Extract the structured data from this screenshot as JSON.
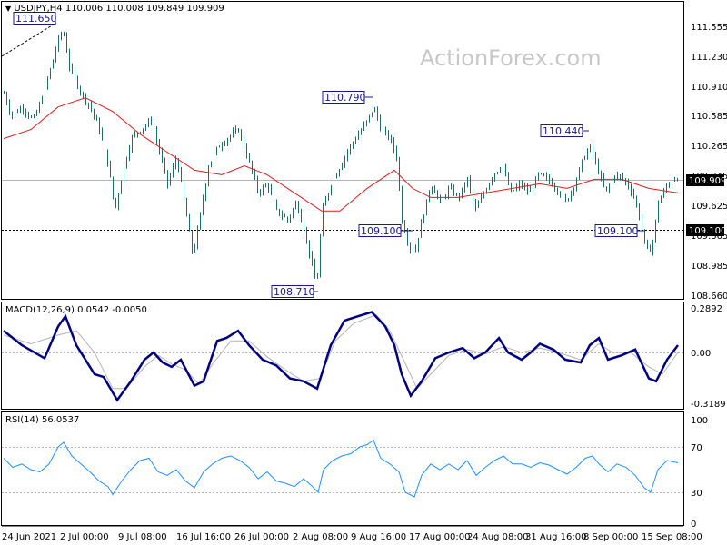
{
  "watermark": "ActionForex.com",
  "header": {
    "symbol": "USDJPY,H4",
    "ohlc": "110.006 110.008 109.849 109.909"
  },
  "price_panel": {
    "current_price": "109.909",
    "support_level": "109.100",
    "price_axis": [
      "111.555",
      "111.230",
      "110.910",
      "110.585",
      "110.265",
      "109.945",
      "109.625",
      "109.305",
      "108.985",
      "108.660"
    ],
    "annotations": [
      "111.650",
      "110.790",
      "110.440",
      "109.100",
      "109.100",
      "108.710"
    ]
  },
  "macd_panel": {
    "label": "MACD(12,26,9) 0.0542 -0.0050",
    "axis": [
      "0.2892",
      "0.00",
      "-0.3189"
    ]
  },
  "rsi_panel": {
    "label": "RSI(14) 56.0537",
    "axis": [
      "100",
      "70",
      "30",
      "0"
    ]
  },
  "time_axis": [
    "24 Jun 2021",
    "2 Jul 00:00",
    "9 Jul 08:00",
    "16 Jul 16:00",
    "26 Jul 00:00",
    "2 Aug 08:00",
    "9 Aug 16:00",
    "17 Aug 00:00",
    "24 Aug 08:00",
    "31 Aug 16:00",
    "8 Sep 00:00",
    "15 Sep 08:00"
  ],
  "colors": {
    "candle": "#1e6e6e",
    "ma": "#dc1e1e",
    "macd": "#000080",
    "signal": "#b4b4b4",
    "rsi": "#1e90ff",
    "label": "#1a1a8c"
  },
  "chart_data": {
    "type": "line",
    "price": {
      "ylim": [
        108.66,
        111.8
      ],
      "close_path": [
        [
          0,
          110.9
        ],
        [
          8,
          110.65
        ],
        [
          20,
          110.75
        ],
        [
          32,
          110.6
        ],
        [
          42,
          110.85
        ],
        [
          52,
          111.2
        ],
        [
          60,
          111.5
        ],
        [
          65,
          111.6
        ],
        [
          72,
          111.2
        ],
        [
          85,
          110.9
        ],
        [
          95,
          110.75
        ],
        [
          105,
          110.5
        ],
        [
          115,
          110.1
        ],
        [
          122,
          109.6
        ],
        [
          130,
          110.0
        ],
        [
          140,
          110.4
        ],
        [
          150,
          110.5
        ],
        [
          162,
          110.6
        ],
        [
          170,
          110.3
        ],
        [
          180,
          109.9
        ],
        [
          190,
          110.2
        ],
        [
          200,
          109.6
        ],
        [
          208,
          109.1
        ],
        [
          215,
          109.5
        ],
        [
          225,
          110.1
        ],
        [
          235,
          110.3
        ],
        [
          245,
          110.4
        ],
        [
          258,
          110.5
        ],
        [
          268,
          110.2
        ],
        [
          280,
          109.8
        ],
        [
          290,
          109.9
        ],
        [
          300,
          109.6
        ],
        [
          312,
          109.5
        ],
        [
          322,
          109.7
        ],
        [
          330,
          109.4
        ],
        [
          338,
          109.05
        ],
        [
          344,
          108.75
        ],
        [
          350,
          109.6
        ],
        [
          360,
          109.9
        ],
        [
          370,
          110.1
        ],
        [
          380,
          110.3
        ],
        [
          390,
          110.45
        ],
        [
          400,
          110.6
        ],
        [
          407,
          110.75
        ],
        [
          415,
          110.5
        ],
        [
          425,
          110.4
        ],
        [
          432,
          110.2
        ],
        [
          438,
          109.5
        ],
        [
          446,
          109.2
        ],
        [
          452,
          109.15
        ],
        [
          460,
          109.5
        ],
        [
          470,
          109.9
        ],
        [
          480,
          109.7
        ],
        [
          490,
          109.85
        ],
        [
          500,
          109.75
        ],
        [
          510,
          109.95
        ],
        [
          518,
          109.6
        ],
        [
          528,
          109.8
        ],
        [
          538,
          110.0
        ],
        [
          548,
          110.1
        ],
        [
          558,
          109.8
        ],
        [
          568,
          109.9
        ],
        [
          578,
          109.8
        ],
        [
          588,
          110.0
        ],
        [
          598,
          109.95
        ],
        [
          608,
          109.85
        ],
        [
          618,
          109.7
        ],
        [
          628,
          109.9
        ],
        [
          638,
          110.2
        ],
        [
          645,
          110.3
        ],
        [
          652,
          110.1
        ],
        [
          662,
          109.8
        ],
        [
          672,
          110.0
        ],
        [
          682,
          109.95
        ],
        [
          692,
          109.8
        ],
        [
          700,
          109.5
        ],
        [
          707,
          109.15
        ],
        [
          713,
          109.2
        ],
        [
          720,
          109.7
        ],
        [
          728,
          109.85
        ],
        [
          736,
          110.0
        ],
        [
          742,
          109.9
        ]
      ],
      "ma_path": [
        [
          0,
          110.4
        ],
        [
          30,
          110.5
        ],
        [
          60,
          110.75
        ],
        [
          90,
          110.85
        ],
        [
          120,
          110.7
        ],
        [
          150,
          110.45
        ],
        [
          180,
          110.25
        ],
        [
          210,
          110.05
        ],
        [
          240,
          110.0
        ],
        [
          265,
          110.1
        ],
        [
          290,
          110.0
        ],
        [
          320,
          109.8
        ],
        [
          350,
          109.6
        ],
        [
          370,
          109.6
        ],
        [
          400,
          109.85
        ],
        [
          430,
          110.05
        ],
        [
          450,
          109.85
        ],
        [
          470,
          109.75
        ],
        [
          500,
          109.75
        ],
        [
          530,
          109.8
        ],
        [
          560,
          109.85
        ],
        [
          590,
          109.9
        ],
        [
          620,
          109.85
        ],
        [
          650,
          109.95
        ],
        [
          680,
          109.95
        ],
        [
          710,
          109.85
        ],
        [
          742,
          109.8
        ]
      ]
    },
    "macd": {
      "ylim": [
        -0.3189,
        0.2892
      ],
      "series": [
        {
          "values": [
            [
              0,
              0.15
            ],
            [
              20,
              0.05
            ],
            [
              45,
              -0.04
            ],
            [
              60,
              0.18
            ],
            [
              68,
              0.25
            ],
            [
              80,
              0.05
            ],
            [
              100,
              -0.15
            ],
            [
              110,
              -0.17
            ],
            [
              125,
              -0.33
            ],
            [
              140,
              -0.2
            ],
            [
              155,
              -0.05
            ],
            [
              165,
              0.0
            ],
            [
              175,
              -0.07
            ],
            [
              185,
              -0.1
            ],
            [
              195,
              -0.05
            ],
            [
              210,
              -0.23
            ],
            [
              220,
              -0.2
            ],
            [
              235,
              0.08
            ],
            [
              245,
              0.1
            ],
            [
              258,
              0.15
            ],
            [
              270,
              0.05
            ],
            [
              285,
              -0.05
            ],
            [
              300,
              -0.09
            ],
            [
              315,
              -0.18
            ],
            [
              330,
              -0.2
            ],
            [
              345,
              -0.25
            ],
            [
              360,
              0.05
            ],
            [
              375,
              0.22
            ],
            [
              390,
              0.25
            ],
            [
              405,
              0.28
            ],
            [
              420,
              0.18
            ],
            [
              430,
              0.05
            ],
            [
              438,
              -0.15
            ],
            [
              448,
              -0.3
            ],
            [
              460,
              -0.2
            ],
            [
              475,
              -0.04
            ],
            [
              490,
              0.0
            ],
            [
              505,
              0.03
            ],
            [
              518,
              -0.04
            ],
            [
              530,
              0.0
            ],
            [
              545,
              0.1
            ],
            [
              555,
              0.0
            ],
            [
              570,
              -0.05
            ],
            [
              580,
              0.0
            ],
            [
              590,
              0.06
            ],
            [
              605,
              0.02
            ],
            [
              618,
              -0.05
            ],
            [
              635,
              -0.07
            ],
            [
              645,
              0.05
            ],
            [
              655,
              0.1
            ],
            [
              665,
              -0.05
            ],
            [
              680,
              -0.02
            ],
            [
              695,
              0.02
            ],
            [
              710,
              -0.18
            ],
            [
              718,
              -0.2
            ],
            [
              730,
              -0.05
            ],
            [
              742,
              0.05
            ]
          ]
        },
        {
          "values": [
            [
              0,
              0.12
            ],
            [
              30,
              0.06
            ],
            [
              60,
              0.12
            ],
            [
              80,
              0.15
            ],
            [
              100,
              0.0
            ],
            [
              120,
              -0.25
            ],
            [
              135,
              -0.25
            ],
            [
              155,
              -0.1
            ],
            [
              170,
              -0.02
            ],
            [
              185,
              -0.08
            ],
            [
              200,
              -0.12
            ],
            [
              215,
              -0.22
            ],
            [
              230,
              -0.08
            ],
            [
              250,
              0.08
            ],
            [
              270,
              0.08
            ],
            [
              290,
              -0.03
            ],
            [
              310,
              -0.12
            ],
            [
              330,
              -0.2
            ],
            [
              348,
              -0.18
            ],
            [
              365,
              0.08
            ],
            [
              385,
              0.2
            ],
            [
              410,
              0.26
            ],
            [
              425,
              0.15
            ],
            [
              440,
              -0.05
            ],
            [
              455,
              -0.25
            ],
            [
              470,
              -0.15
            ],
            [
              490,
              -0.02
            ],
            [
              510,
              0.02
            ],
            [
              530,
              -0.01
            ],
            [
              550,
              0.04
            ],
            [
              570,
              0.0
            ],
            [
              590,
              0.03
            ],
            [
              610,
              0.0
            ],
            [
              635,
              -0.05
            ],
            [
              655,
              0.06
            ],
            [
              670,
              0.0
            ],
            [
              690,
              0.0
            ],
            [
              710,
              -0.1
            ],
            [
              725,
              -0.15
            ],
            [
              742,
              0.0
            ]
          ]
        }
      ]
    },
    "rsi": {
      "ylim": [
        0,
        100
      ],
      "levels": [
        70,
        30
      ],
      "values": [
        [
          0,
          60
        ],
        [
          10,
          52
        ],
        [
          20,
          55
        ],
        [
          30,
          50
        ],
        [
          40,
          48
        ],
        [
          50,
          55
        ],
        [
          60,
          70
        ],
        [
          66,
          74
        ],
        [
          75,
          62
        ],
        [
          85,
          55
        ],
        [
          95,
          48
        ],
        [
          105,
          40
        ],
        [
          115,
          35
        ],
        [
          120,
          28
        ],
        [
          130,
          40
        ],
        [
          140,
          50
        ],
        [
          150,
          58
        ],
        [
          160,
          60
        ],
        [
          170,
          48
        ],
        [
          180,
          45
        ],
        [
          190,
          50
        ],
        [
          200,
          40
        ],
        [
          210,
          34
        ],
        [
          220,
          48
        ],
        [
          230,
          55
        ],
        [
          240,
          60
        ],
        [
          250,
          62
        ],
        [
          260,
          58
        ],
        [
          270,
          52
        ],
        [
          280,
          42
        ],
        [
          290,
          48
        ],
        [
          300,
          40
        ],
        [
          310,
          38
        ],
        [
          320,
          35
        ],
        [
          330,
          42
        ],
        [
          340,
          35
        ],
        [
          346,
          30
        ],
        [
          352,
          50
        ],
        [
          362,
          58
        ],
        [
          372,
          62
        ],
        [
          382,
          64
        ],
        [
          392,
          70
        ],
        [
          400,
          72
        ],
        [
          407,
          76
        ],
        [
          415,
          60
        ],
        [
          425,
          55
        ],
        [
          435,
          48
        ],
        [
          442,
          30
        ],
        [
          452,
          26
        ],
        [
          460,
          45
        ],
        [
          470,
          55
        ],
        [
          480,
          50
        ],
        [
          490,
          55
        ],
        [
          500,
          50
        ],
        [
          510,
          58
        ],
        [
          520,
          45
        ],
        [
          530,
          52
        ],
        [
          540,
          58
        ],
        [
          550,
          62
        ],
        [
          560,
          55
        ],
        [
          570,
          55
        ],
        [
          580,
          52
        ],
        [
          590,
          56
        ],
        [
          600,
          54
        ],
        [
          610,
          50
        ],
        [
          620,
          46
        ],
        [
          630,
          52
        ],
        [
          640,
          60
        ],
        [
          648,
          62
        ],
        [
          655,
          55
        ],
        [
          665,
          48
        ],
        [
          675,
          55
        ],
        [
          685,
          52
        ],
        [
          695,
          45
        ],
        [
          705,
          34
        ],
        [
          712,
          30
        ],
        [
          720,
          50
        ],
        [
          730,
          58
        ],
        [
          742,
          56
        ]
      ]
    }
  }
}
